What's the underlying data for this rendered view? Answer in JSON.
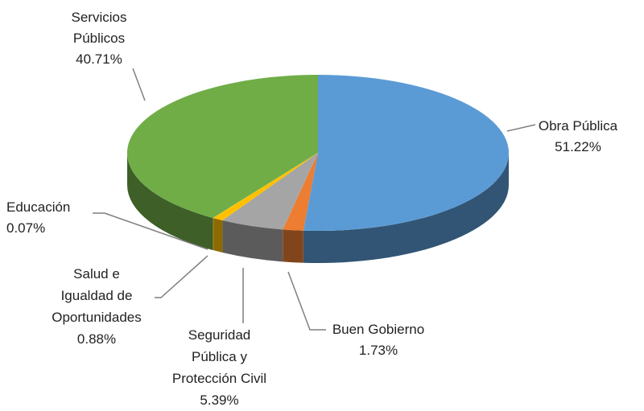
{
  "chart_data": {
    "type": "pie",
    "categories": [
      "Obra Pública",
      "Buen Gobierno",
      "Seguridad Pública y Protección Civil",
      "Salud e Igualdad de Oportunidades",
      "Educación",
      "Servicios Públicos"
    ],
    "values": [
      51.22,
      1.73,
      5.39,
      0.88,
      0.07,
      40.71
    ],
    "value_labels": [
      "51.22%",
      "1.73%",
      "5.39%",
      "0.88%",
      "0.07%",
      "40.71%"
    ],
    "colors": [
      "#5b9bd5",
      "#ed7d31",
      "#a5a5a5",
      "#ffc000",
      "#ffc000",
      "#70ad47"
    ]
  }
}
